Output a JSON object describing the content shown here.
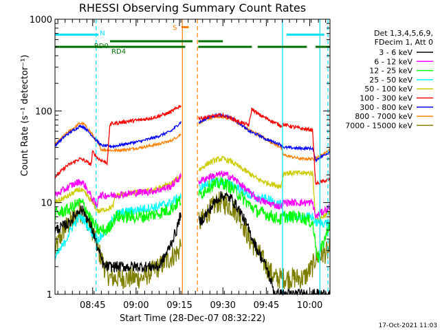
{
  "chart_data": {
    "type": "line",
    "title": "RHESSI Observing Summary Count Rates",
    "ylabel": "Count Rate (s⁻¹ detector⁻¹)",
    "xlabel": "Start Time (28-Dec-07 08:32:22)",
    "y_scale": "log",
    "ylim": [
      1,
      1000
    ],
    "xlim_minutes_after_0832": [
      0,
      95
    ],
    "x_ticks": [
      {
        "label": "08:45",
        "t": 13
      },
      {
        "label": "09:00",
        "t": 28
      },
      {
        "label": "09:15",
        "t": 43
      },
      {
        "label": "09:30",
        "t": 58
      },
      {
        "label": "09:45",
        "t": 73
      },
      {
        "label": "10:00",
        "t": 88
      }
    ],
    "y_ticks": [
      {
        "label": "1",
        "v": 1
      },
      {
        "label": "10",
        "v": 10
      },
      {
        "label": "100",
        "v": 100
      },
      {
        "label": "1000",
        "v": 1000
      }
    ],
    "legend": {
      "header1": "Det 1,3,4,5,6,9,",
      "header2": "FDecim 1, Att 0",
      "placement": "right"
    },
    "data_gap": {
      "label": "S",
      "t_start": 43.5,
      "t_end": 49.5
    },
    "flags": [
      {
        "name": "N",
        "color": "#00e0ff",
        "level": 680,
        "segments": [
          [
            0,
            15
          ],
          [
            80,
            93
          ]
        ],
        "label_t": 15.5
      },
      {
        "name": "RD0",
        "color": "#007000",
        "level": 575,
        "segments": [
          [
            19,
            47.5
          ],
          [
            49.5,
            58
          ]
        ],
        "label_t": 13.5
      },
      {
        "name": "RD4",
        "color": "#007000",
        "level": 500,
        "segments": [
          [
            0,
            45
          ],
          [
            49.5,
            68
          ],
          [
            70,
            87
          ],
          [
            90,
            95
          ]
        ],
        "label_t": 19.5
      }
    ],
    "vlines": [
      {
        "t": 14.2,
        "color": "#00e0ff",
        "dash": true
      },
      {
        "t": 44,
        "color": "#ff8000",
        "dash": false
      },
      {
        "t": 49.2,
        "color": "#ff8000",
        "dash": true
      },
      {
        "t": 78.6,
        "color": "#00e0ff",
        "dash": false
      },
      {
        "t": 91.5,
        "color": "#00e0ff",
        "dash": false
      },
      {
        "t": 94.3,
        "color": "#00e0ff",
        "dash": true
      }
    ],
    "series": [
      {
        "name": "3 - 6 keV",
        "color": "#000000",
        "noise": 0.06,
        "points": [
          [
            0,
            5
          ],
          [
            5,
            6
          ],
          [
            8.5,
            8.5
          ],
          [
            10,
            8
          ],
          [
            13,
            5
          ],
          [
            15,
            3
          ],
          [
            17,
            2
          ],
          [
            20,
            2
          ],
          [
            25,
            2
          ],
          [
            28,
            2
          ],
          [
            32,
            2
          ],
          [
            36,
            2
          ],
          [
            39,
            3
          ],
          [
            42,
            5
          ],
          [
            44,
            9
          ],
          [
            50,
            6
          ],
          [
            53,
            8
          ],
          [
            56,
            11
          ],
          [
            58,
            12
          ],
          [
            61,
            11
          ],
          [
            64,
            8
          ],
          [
            67,
            5
          ],
          [
            70,
            3
          ],
          [
            73,
            2
          ],
          [
            76,
            1
          ],
          [
            95,
            1
          ]
        ]
      },
      {
        "name": "6 - 12 keV",
        "color": "#ff00ff",
        "noise": 0.04,
        "points": [
          [
            0,
            12
          ],
          [
            5,
            15
          ],
          [
            8.5,
            17
          ],
          [
            10,
            16
          ],
          [
            13,
            11
          ],
          [
            14.5,
            9
          ],
          [
            15,
            12
          ],
          [
            20,
            12
          ],
          [
            25,
            12.5
          ],
          [
            30,
            13
          ],
          [
            35,
            13.5
          ],
          [
            40,
            15
          ],
          [
            44,
            20
          ],
          [
            50,
            17
          ],
          [
            53,
            19
          ],
          [
            56,
            20
          ],
          [
            58,
            20.5
          ],
          [
            61,
            19
          ],
          [
            64,
            16
          ],
          [
            67,
            13
          ],
          [
            70,
            11
          ],
          [
            73,
            10
          ],
          [
            78,
            9
          ],
          [
            79,
            10
          ],
          [
            82,
            10
          ],
          [
            86,
            10
          ],
          [
            89,
            10
          ],
          [
            90,
            7
          ],
          [
            95,
            9
          ]
        ]
      },
      {
        "name": "12 - 25 keV",
        "color": "#00ff00",
        "noise": 0.07,
        "points": [
          [
            0,
            7.5
          ],
          [
            5,
            8.5
          ],
          [
            8.5,
            10
          ],
          [
            10,
            9.5
          ],
          [
            13,
            6
          ],
          [
            15,
            5
          ],
          [
            18,
            5
          ],
          [
            21,
            7
          ],
          [
            25,
            7
          ],
          [
            30,
            7
          ],
          [
            35,
            7.5
          ],
          [
            40,
            8.5
          ],
          [
            44,
            11
          ],
          [
            50,
            12
          ],
          [
            53,
            15
          ],
          [
            56,
            16
          ],
          [
            58,
            16.5
          ],
          [
            61,
            14.5
          ],
          [
            64,
            12
          ],
          [
            67,
            9.5
          ],
          [
            70,
            8
          ],
          [
            73,
            7.5
          ],
          [
            78,
            6.5
          ],
          [
            79,
            7
          ],
          [
            85,
            7
          ],
          [
            89,
            6
          ],
          [
            90,
            3.5
          ],
          [
            91,
            2.5
          ],
          [
            95,
            6
          ]
        ]
      },
      {
        "name": "25 - 50 keV",
        "color": "#00ffff",
        "noise": 0.05,
        "points": [
          [
            0,
            2.5
          ],
          [
            3,
            3.5
          ],
          [
            6,
            5.5
          ],
          [
            8.5,
            7
          ],
          [
            10,
            6.5
          ],
          [
            13,
            4.5
          ],
          [
            15,
            4
          ],
          [
            18,
            5
          ],
          [
            21,
            7.5
          ],
          [
            25,
            8
          ],
          [
            30,
            8.5
          ],
          [
            35,
            9
          ],
          [
            40,
            10
          ],
          [
            44,
            12
          ],
          [
            50,
            14.5
          ],
          [
            53,
            16
          ],
          [
            56,
            17
          ],
          [
            58,
            17
          ],
          [
            61,
            16
          ],
          [
            64,
            14
          ],
          [
            67,
            12
          ],
          [
            70,
            11
          ],
          [
            73,
            11
          ],
          [
            78,
            9.5
          ],
          [
            79,
            7
          ],
          [
            85,
            7
          ],
          [
            89,
            7
          ],
          [
            90,
            6
          ],
          [
            95,
            6
          ]
        ]
      },
      {
        "name": "50 - 100 keV",
        "color": "#cccc00",
        "noise": 0.03,
        "points": [
          [
            0,
            10
          ],
          [
            5,
            12
          ],
          [
            8.5,
            14
          ],
          [
            10,
            13
          ],
          [
            13,
            10
          ],
          [
            15,
            8
          ],
          [
            20,
            9
          ],
          [
            21,
            12
          ],
          [
            25,
            12.5
          ],
          [
            30,
            13
          ],
          [
            35,
            14
          ],
          [
            40,
            16
          ],
          [
            44,
            20
          ],
          [
            50,
            23
          ],
          [
            53,
            27
          ],
          [
            56,
            29.5
          ],
          [
            58,
            30
          ],
          [
            61,
            28
          ],
          [
            64,
            24
          ],
          [
            67,
            21
          ],
          [
            70,
            18
          ],
          [
            73,
            16.5
          ],
          [
            78,
            15
          ],
          [
            79,
            21
          ],
          [
            85,
            21
          ],
          [
            89,
            21
          ],
          [
            90,
            6.5
          ],
          [
            91,
            6.5
          ],
          [
            95,
            8
          ]
        ]
      },
      {
        "name": "100 - 300 keV",
        "color": "#ff0000",
        "noise": 0.02,
        "points": [
          [
            0,
            19
          ],
          [
            4,
            25
          ],
          [
            8.5,
            30
          ],
          [
            10,
            29
          ],
          [
            12.5,
            26
          ],
          [
            13,
            36
          ],
          [
            15,
            30
          ],
          [
            18,
            27
          ],
          [
            19,
            72
          ],
          [
            25,
            77
          ],
          [
            30,
            80
          ],
          [
            35,
            86
          ],
          [
            40,
            97
          ],
          [
            44,
            118
          ],
          [
            50,
            83
          ],
          [
            53,
            86
          ],
          [
            56,
            89
          ],
          [
            58,
            89
          ],
          [
            61,
            83
          ],
          [
            64,
            75
          ],
          [
            67,
            70
          ],
          [
            68,
            106
          ],
          [
            70,
            93
          ],
          [
            73,
            83
          ],
          [
            78,
            69
          ],
          [
            79,
            71
          ],
          [
            85,
            64
          ],
          [
            89,
            62
          ],
          [
            90,
            16
          ],
          [
            95,
            18
          ]
        ]
      },
      {
        "name": "300 - 800 keV",
        "color": "#0000ff",
        "noise": 0.015,
        "points": [
          [
            0,
            42
          ],
          [
            4,
            55
          ],
          [
            8.5,
            68
          ],
          [
            10,
            67
          ],
          [
            13,
            53
          ],
          [
            16,
            42
          ],
          [
            20,
            41
          ],
          [
            25,
            44
          ],
          [
            30,
            47
          ],
          [
            35,
            52
          ],
          [
            40,
            60
          ],
          [
            44,
            78
          ],
          [
            50,
            75
          ],
          [
            53,
            85
          ],
          [
            56,
            90
          ],
          [
            58,
            90
          ],
          [
            61,
            84
          ],
          [
            64,
            72
          ],
          [
            67,
            60
          ],
          [
            70,
            55
          ],
          [
            73,
            49
          ],
          [
            78,
            43
          ],
          [
            79,
            40
          ],
          [
            85,
            39
          ],
          [
            89,
            39
          ],
          [
            90,
            29
          ],
          [
            95,
            36
          ]
        ]
      },
      {
        "name": "800 - 7000 keV",
        "color": "#ff8000",
        "noise": 0.015,
        "points": [
          [
            0,
            43
          ],
          [
            4,
            57
          ],
          [
            8.5,
            73
          ],
          [
            10,
            72
          ],
          [
            13,
            55
          ],
          [
            16,
            38
          ],
          [
            20,
            37
          ],
          [
            25,
            38
          ],
          [
            30,
            40
          ],
          [
            35,
            43
          ],
          [
            40,
            47
          ],
          [
            44,
            57
          ],
          [
            50,
            75
          ],
          [
            53,
            83
          ],
          [
            56,
            86
          ],
          [
            58,
            86
          ],
          [
            61,
            82
          ],
          [
            64,
            72
          ],
          [
            67,
            62
          ],
          [
            70,
            56
          ],
          [
            73,
            49
          ],
          [
            78,
            40
          ],
          [
            79,
            33
          ],
          [
            85,
            30
          ],
          [
            89,
            30
          ],
          [
            90,
            30
          ],
          [
            95,
            38
          ]
        ]
      },
      {
        "name": "7000 - 15000 keV",
        "color": "#808000",
        "noise": 0.12,
        "points": [
          [
            0,
            3
          ],
          [
            3,
            5
          ],
          [
            8.5,
            8
          ],
          [
            10,
            7.5
          ],
          [
            13,
            5
          ],
          [
            15,
            3
          ],
          [
            17,
            2
          ],
          [
            19,
            1.5
          ],
          [
            25,
            1.5
          ],
          [
            30,
            1.5
          ],
          [
            36,
            2
          ],
          [
            40,
            2.5
          ],
          [
            43,
            3
          ],
          [
            44,
            6
          ],
          [
            50,
            6
          ],
          [
            53,
            8
          ],
          [
            56,
            10
          ],
          [
            58,
            10
          ],
          [
            61,
            9
          ],
          [
            64,
            7
          ],
          [
            67,
            4
          ],
          [
            70,
            3
          ],
          [
            73,
            2
          ],
          [
            76,
            1.5
          ],
          [
            86,
            1.5
          ],
          [
            89,
            2
          ],
          [
            90,
            2.5
          ],
          [
            95,
            3
          ]
        ]
      }
    ]
  },
  "footer": {
    "timestamp": "17-Oct-2021 11:03"
  }
}
